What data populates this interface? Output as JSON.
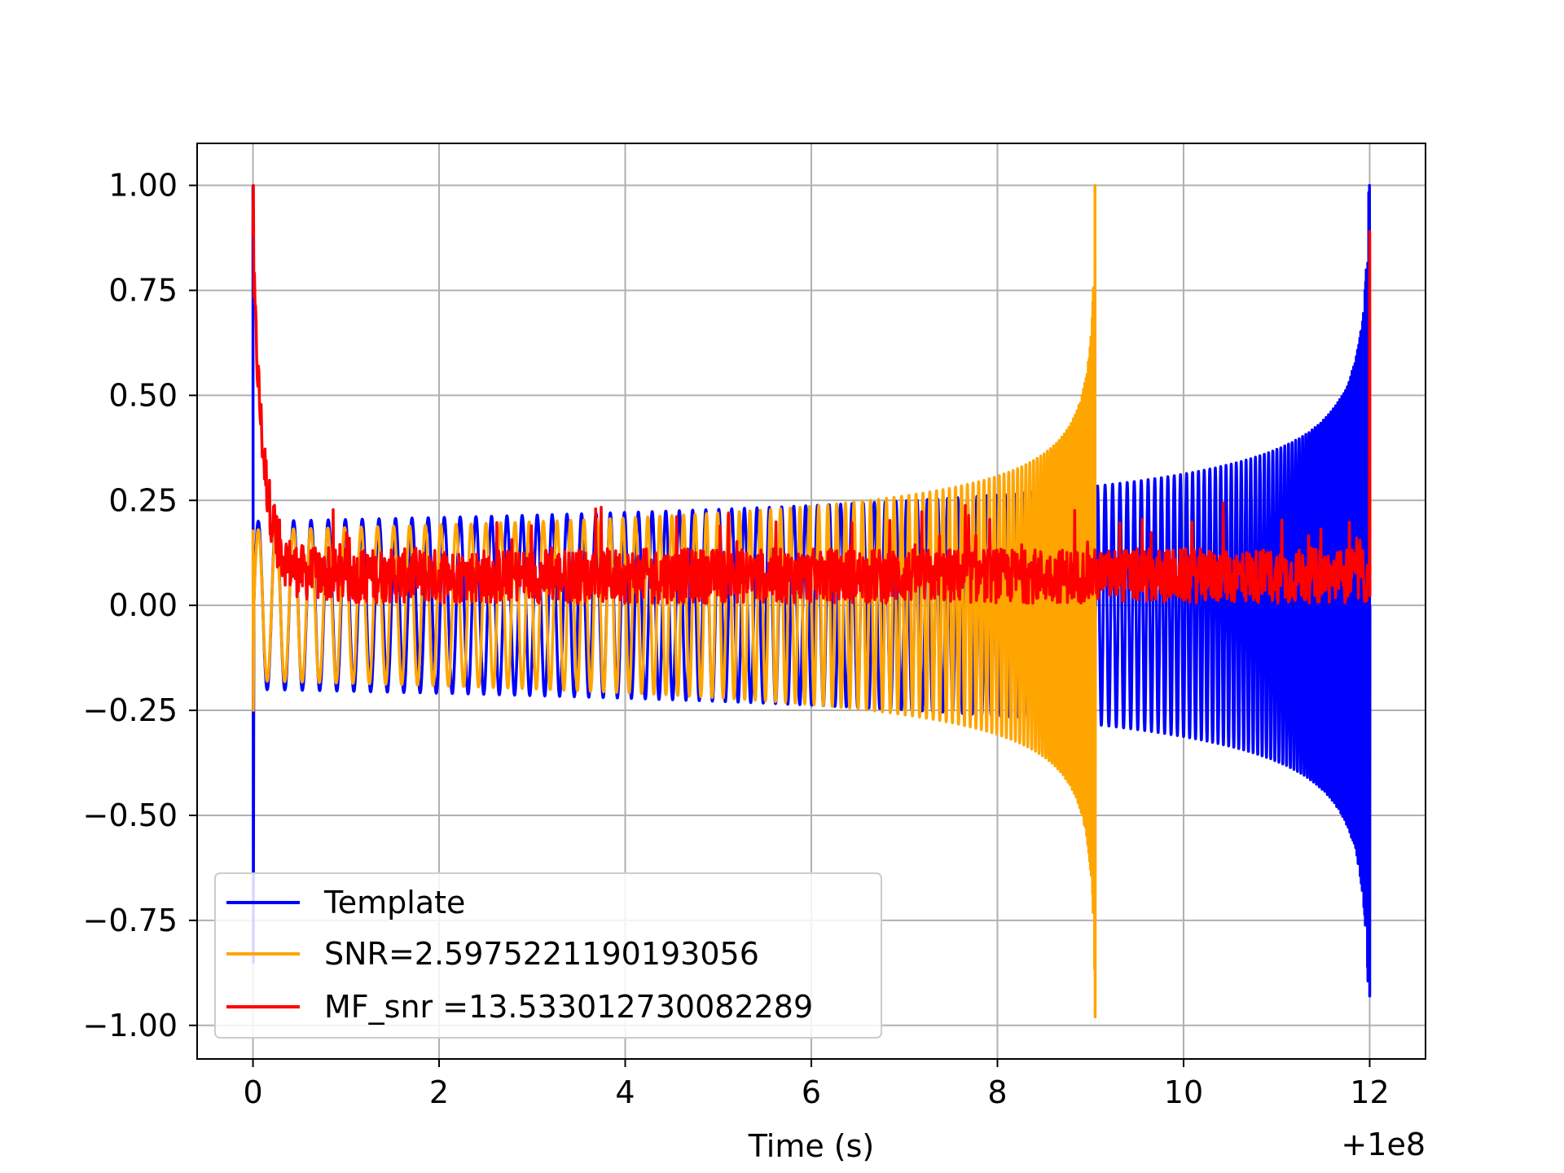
{
  "chart_data": {
    "type": "line",
    "title": "",
    "xlabel": "Time (s)",
    "ylabel": "",
    "x_offset_label": "+1e8",
    "xlim": [
      -0.6,
      12.6
    ],
    "ylim": [
      -1.08,
      1.1
    ],
    "grid": true,
    "legend_position": "lower-left",
    "x_ticks": [
      0,
      2,
      4,
      6,
      8,
      10,
      12
    ],
    "x_tick_labels": [
      "0",
      "2",
      "4",
      "6",
      "8",
      "10",
      "12"
    ],
    "y_ticks": [
      1.0,
      0.75,
      0.5,
      0.25,
      0.0,
      -0.25,
      -0.5,
      -0.75,
      -1.0
    ],
    "y_tick_labels": [
      "1.00",
      "0.75",
      "0.50",
      "0.25",
      "0.00",
      "−0.25",
      "−0.50",
      "−0.75",
      "−1.00"
    ],
    "series": [
      {
        "name": "Template",
        "color": "#0000ff",
        "kind": "chirp",
        "start": 0.0,
        "merger": 12.0,
        "floor": 0.2,
        "peak": 1.0,
        "trough": -0.93,
        "initial_spike": [
          1.0,
          -0.85
        ]
      },
      {
        "name": "SNR=2.5975221190193056",
        "color": "#ffa500",
        "kind": "chirp",
        "start": 0.0,
        "merger": 9.05,
        "floor": 0.18,
        "peak": 1.0,
        "trough": -0.98,
        "initial_spike": [
          0.18,
          -0.25
        ]
      },
      {
        "name": "MF_snr =13.533012730082289",
        "color": "#ff0000",
        "kind": "noise",
        "start": 0.0,
        "end": 12.0,
        "baseline": 0.07,
        "amplitude": 0.13,
        "start_peak": 1.0,
        "end_peak": 0.89
      }
    ]
  }
}
